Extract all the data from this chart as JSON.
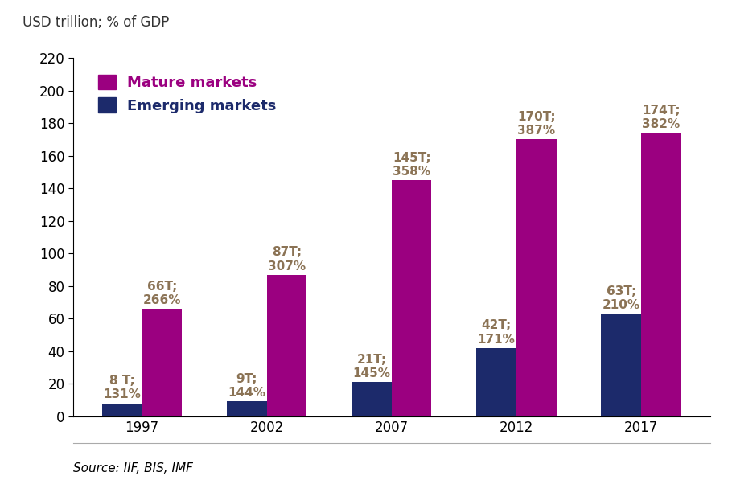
{
  "years": [
    "1997",
    "2002",
    "2007",
    "2012",
    "2017"
  ],
  "emerging_values": [
    8,
    9,
    21,
    42,
    63
  ],
  "mature_values": [
    66,
    87,
    145,
    170,
    174
  ],
  "emerging_labels": [
    "8 T;\n131%",
    "9T;\n144%",
    "21T;\n145%",
    "42T;\n171%",
    "63T;\n210%"
  ],
  "mature_labels": [
    "66T;\n266%",
    "87T;\n307%",
    "145T;\n358%",
    "170T;\n387%",
    "174T;\n382%"
  ],
  "emerging_color": "#1c2a6b",
  "mature_color": "#9b0080",
  "ylim": [
    0,
    220
  ],
  "yticks": [
    0,
    20,
    40,
    60,
    80,
    100,
    120,
    140,
    160,
    180,
    200,
    220
  ],
  "ylabel": "USD trillion; % of GDP",
  "legend_mature": "Mature markets",
  "legend_emerging": "Emerging markets",
  "source_text": "Source: IIF, BIS, IMF",
  "bar_width": 0.32,
  "background_color": "#ffffff",
  "label_fontsize": 11,
  "legend_fontsize": 13,
  "tick_fontsize": 12,
  "label_color": "#8B7355"
}
